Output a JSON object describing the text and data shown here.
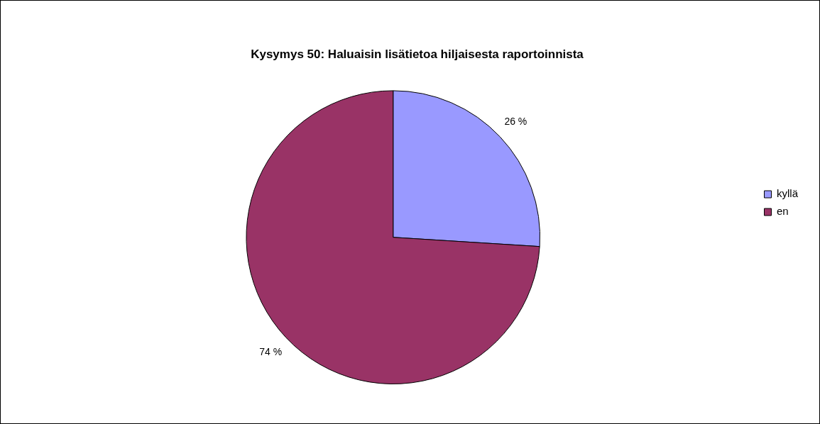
{
  "chart_data": {
    "type": "pie",
    "title": "Kysymys 50: Haluaisin lisätietoa hiljaisesta raportoinnista",
    "categories": [
      "kyllä",
      "en"
    ],
    "values": [
      26,
      74
    ],
    "value_labels": [
      "26 %",
      "74 %"
    ],
    "colors": [
      "#9999ff",
      "#993366"
    ],
    "legend": "right"
  }
}
